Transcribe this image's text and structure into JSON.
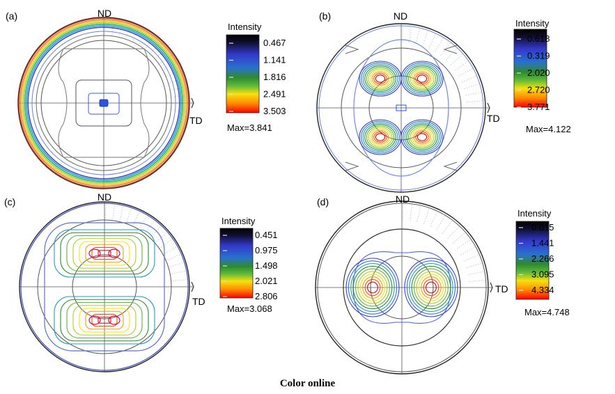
{
  "caption": "Color online",
  "legend_title": "Intensity",
  "colormap": [
    "#000000",
    "#3338c8",
    "#2f8a2f",
    "#f5e10f",
    "#ff0000"
  ],
  "chart_data": [
    {
      "panel": "(a)",
      "type": "heatmap",
      "plot": "pole figure",
      "axis_labels": [
        "ND",
        "TD"
      ],
      "legend": {
        "title": "Intensity",
        "levels": [
          "0.467",
          "1.141",
          "1.816",
          "2.491",
          "3.503"
        ]
      },
      "max_text": "Max=3.841",
      "max": 3.841
    },
    {
      "panel": "(b)",
      "type": "heatmap",
      "plot": "pole figure",
      "axis_labels": [
        "ND",
        "TD"
      ],
      "legend": {
        "title": "Intensity",
        "levels": [
          "0.618",
          "0.319",
          "2.020",
          "2.720",
          "3.771"
        ]
      },
      "max_text": "Max=4.122",
      "max": 4.122
    },
    {
      "panel": "(c)",
      "type": "heatmap",
      "plot": "pole figure",
      "axis_labels": [
        "ND",
        "TD"
      ],
      "legend": {
        "title": "Intensity",
        "levels": [
          "0.451",
          "0.975",
          "1.498",
          "2.021",
          "2.806"
        ]
      },
      "max_text": "Max=3.068",
      "max": 3.068
    },
    {
      "panel": "(d)",
      "type": "heatmap",
      "plot": "pole figure",
      "axis_labels": [
        "ND",
        "TD"
      ],
      "legend": {
        "title": "Intensity",
        "levels": [
          "0.615",
          "1.441",
          "2.266",
          "3.095",
          "4.334"
        ]
      },
      "max_text": "Max=4.748",
      "max": 4.748
    }
  ]
}
